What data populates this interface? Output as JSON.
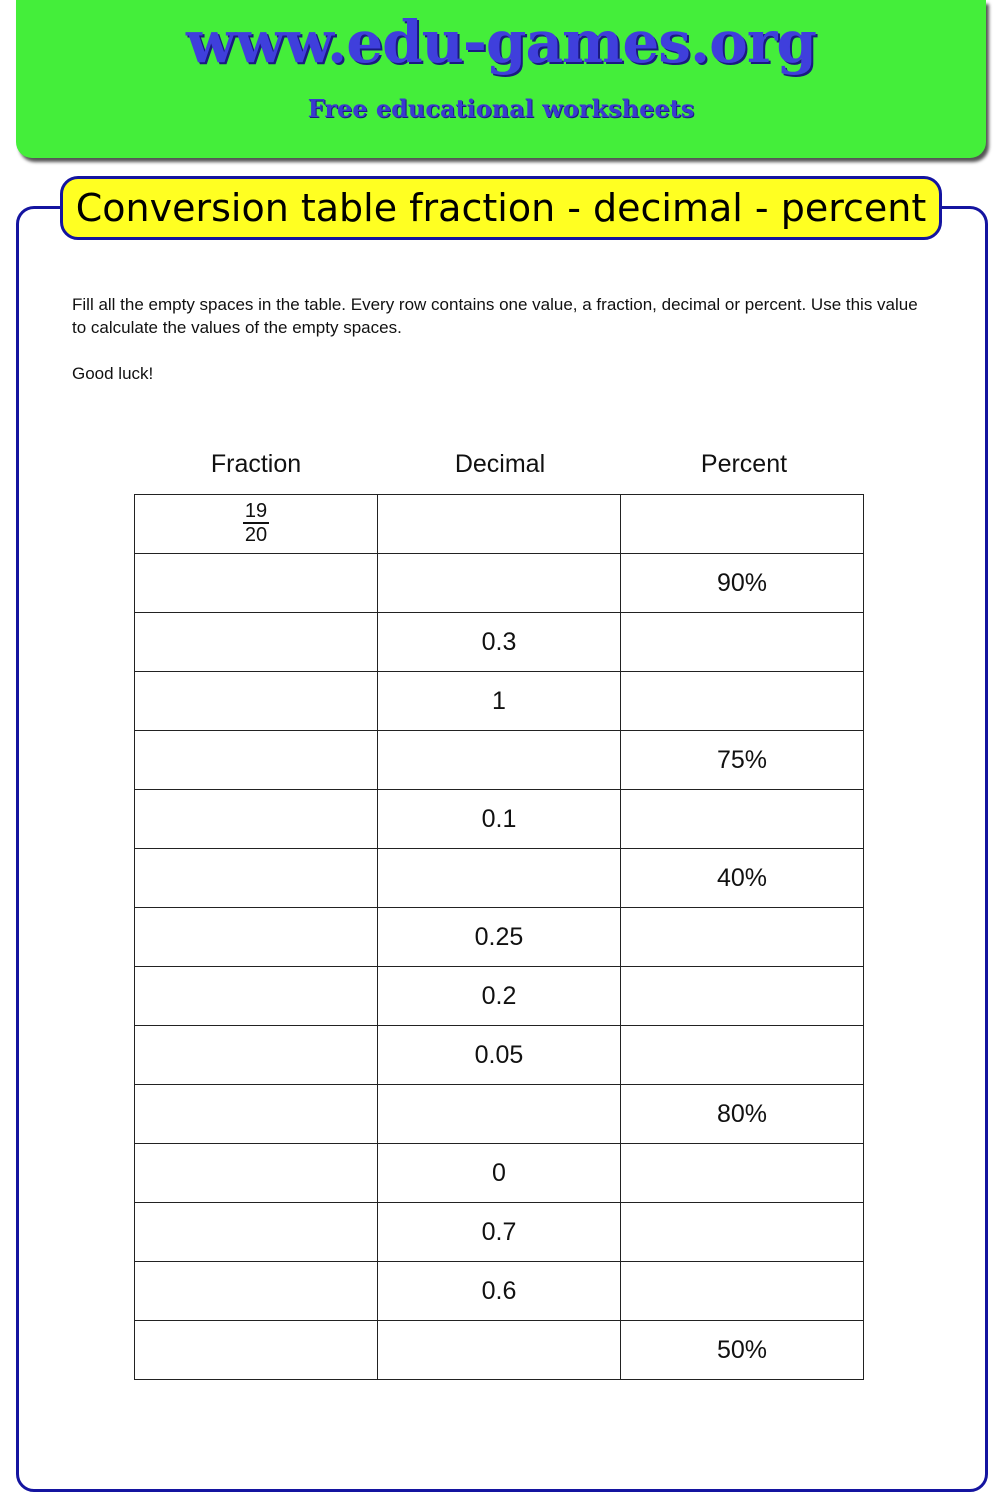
{
  "header": {
    "site": "www.edu-games.org",
    "tagline": "Free educational worksheets"
  },
  "title": "Conversion table fraction - decimal - percent",
  "instructions": "Fill all the empty spaces in the table. Every row contains one value, a fraction, decimal or percent. Use this value to calculate the values of the empty spaces.",
  "good_luck": "Good luck!",
  "table": {
    "columns": [
      "Fraction",
      "Decimal",
      "Percent"
    ],
    "rows": [
      {
        "fraction": {
          "numerator": "19",
          "denominator": "20"
        },
        "decimal": "",
        "percent": ""
      },
      {
        "fraction": null,
        "decimal": "",
        "percent": "90%"
      },
      {
        "fraction": null,
        "decimal": "0.3",
        "percent": ""
      },
      {
        "fraction": null,
        "decimal": "1",
        "percent": ""
      },
      {
        "fraction": null,
        "decimal": "",
        "percent": "75%"
      },
      {
        "fraction": null,
        "decimal": "0.1",
        "percent": ""
      },
      {
        "fraction": null,
        "decimal": "",
        "percent": "40%"
      },
      {
        "fraction": null,
        "decimal": "0.25",
        "percent": ""
      },
      {
        "fraction": null,
        "decimal": "0.2",
        "percent": ""
      },
      {
        "fraction": null,
        "decimal": "0.05",
        "percent": ""
      },
      {
        "fraction": null,
        "decimal": "",
        "percent": "80%"
      },
      {
        "fraction": null,
        "decimal": "0",
        "percent": ""
      },
      {
        "fraction": null,
        "decimal": "0.7",
        "percent": ""
      },
      {
        "fraction": null,
        "decimal": "0.6",
        "percent": ""
      },
      {
        "fraction": null,
        "decimal": "",
        "percent": "50%"
      }
    ]
  }
}
